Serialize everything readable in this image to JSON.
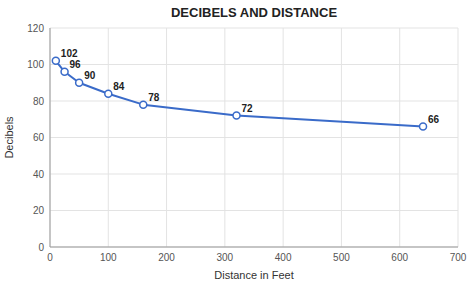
{
  "chart_data": {
    "type": "line",
    "title": "DECIBELS AND DISTANCE",
    "xlabel": "Distance in Feet",
    "ylabel": "Decibels",
    "x": [
      10,
      25,
      50,
      100,
      160,
      320,
      640
    ],
    "values": [
      102,
      96,
      90,
      84,
      78,
      72,
      66
    ],
    "xlim": [
      0,
      700
    ],
    "ylim": [
      0,
      120
    ],
    "xticks": [
      0,
      100,
      200,
      300,
      400,
      500,
      600,
      700
    ],
    "yticks": [
      0,
      20,
      40,
      60,
      80,
      100,
      120
    ],
    "color": "#3a6bc9",
    "marker": "circle",
    "grid": true,
    "data_labels": true
  }
}
